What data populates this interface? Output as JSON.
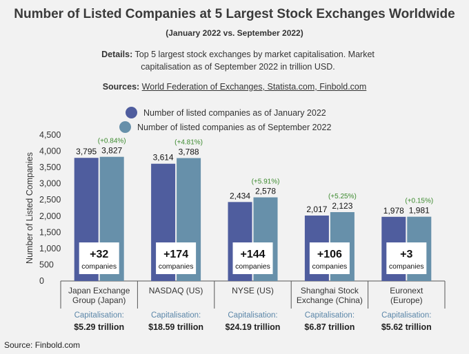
{
  "title": "Number of Listed Companies at 5 Largest Stock Exchanges Worldwide",
  "subtitle": "(January 2022 vs. September 2022)",
  "details": {
    "label": "Details:",
    "text_line1": "Top 5 largest stock exchanges by market capitalisation. Market",
    "text_line2": "capitalisation as of September 2022 in trillion USD."
  },
  "sources": {
    "label": "Sources:",
    "links": "World Federation of Exchanges, Statista.com, Finbold.com"
  },
  "footer": "Source: Finbold.com",
  "colors": {
    "series_jan": "#4f5d9e",
    "series_sep": "#6790aa",
    "change_text": "#3c8a2e",
    "capitalisation_label": "#5b86a8"
  },
  "chart_data": {
    "type": "bar",
    "ylabel": "Number of Listed Companies",
    "ylim": [
      0,
      4500
    ],
    "yticks": [
      0,
      500,
      1000,
      1500,
      2000,
      2500,
      3000,
      3500,
      4000,
      4500
    ],
    "ytick_labels": [
      "0",
      "500",
      "1,000",
      "1,500",
      "2,000",
      "2,500",
      "3,000",
      "3,500",
      "4,000",
      "4,500"
    ],
    "grid": false,
    "legend_position": "top",
    "categories": [
      [
        "Japan Exchange",
        "Group (Japan)"
      ],
      [
        "NASDAQ (US)"
      ],
      [
        "NYSE (US)"
      ],
      [
        "Shanghai Stock",
        "Exchange (China)"
      ],
      [
        "Euronext",
        "(Europe)"
      ]
    ],
    "series": [
      {
        "name": "Number of listed companies as of January 2022",
        "values": [
          3795,
          3614,
          2434,
          2017,
          1978
        ],
        "labels": [
          "3,795",
          "3,614",
          "2,434",
          "2,017",
          "1,978"
        ]
      },
      {
        "name": "Number of listed companies as of September 2022",
        "values": [
          3827,
          3788,
          2578,
          2123,
          1981
        ],
        "labels": [
          "3,827",
          "3,788",
          "2,578",
          "2,123",
          "1,981"
        ]
      }
    ],
    "pct_change": [
      "(+0.84%)",
      "(+4.81%)",
      "(+5.91%)",
      "(+5.25%)",
      "(+0.15%)"
    ],
    "abs_change": [
      "+32",
      "+174",
      "+144",
      "+106",
      "+3"
    ],
    "abs_change_unit": "companies",
    "capitalisation_label": "Capitalisation:",
    "capitalisation": [
      "$5.29 trillion",
      "$18.59 trillion",
      "$24.19 trillion",
      "$6.87 trillion",
      "$5.62 trillion"
    ]
  }
}
